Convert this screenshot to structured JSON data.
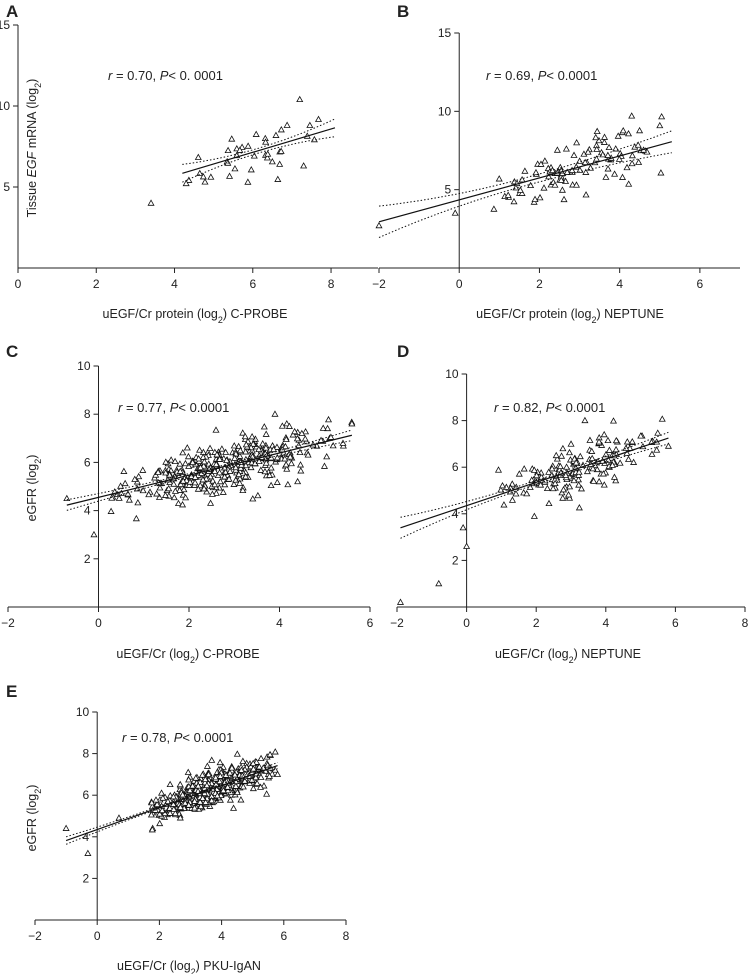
{
  "figure": "Five-panel scatter figure with linear regression fits and 95% confidence bands",
  "chart_data": [
    {
      "panel": "A",
      "type": "scatter",
      "title": "",
      "xlabel": "uEGF/Cr protein (log2) C-PROBE",
      "xlabel_parts": [
        "uEGF/Cr protein (log",
        "2",
        ") C-PROBE"
      ],
      "ylabel": "Tissue EGF mRNA (log2)",
      "ylabel_parts": [
        "Tissue ",
        "EGF",
        " mRNA (log",
        "2",
        ")"
      ],
      "annotation": {
        "r": "r",
        "text": " = 0.70,  ",
        "p": "P",
        "p_text": "< 0. 0001"
      },
      "xlim": [
        0,
        9.2
      ],
      "ylim": [
        0,
        15
      ],
      "xticks": [
        0,
        2,
        4,
        6,
        8
      ],
      "yticks": [
        5,
        10,
        15
      ],
      "fit": {
        "x": [
          4.2,
          8.1
        ],
        "intercept": 2.82,
        "slope": 0.72,
        "ci_width": [
          0.55,
          0.15,
          0.55
        ]
      },
      "points_n": 40,
      "points_x_range": [
        3.3,
        8.2
      ],
      "points_sd": 0.75,
      "seed": 11,
      "highlight_points": [
        [
          3.4,
          4.0
        ],
        [
          7.2,
          10.4
        ]
      ]
    },
    {
      "panel": "B",
      "type": "scatter",
      "title": "",
      "xlabel": "uEGF/Cr protein (log2) NEPTUNE",
      "xlabel_parts": [
        "uEGF/Cr protein (log",
        "2",
        ") NEPTUNE"
      ],
      "ylabel": "",
      "annotation": {
        "r": "r",
        "text": " = 0.69,  ",
        "p": "P",
        "p_text": "< 0.0001"
      },
      "xlim": [
        -2,
        7
      ],
      "ylim": [
        0,
        15
      ],
      "xticks": [
        -2,
        0,
        2,
        4,
        6
      ],
      "yticks": [
        5,
        10,
        15
      ],
      "fit": {
        "x": [
          -2,
          5.3
        ],
        "intercept": 4.35,
        "slope": 0.7,
        "ci_width": [
          1.0,
          0.25,
          0.7
        ]
      },
      "points_n": 110,
      "points_x_range": [
        -0.1,
        5.3
      ],
      "points_sd": 0.85,
      "seed": 23,
      "highlight_points": [
        [
          -2.0,
          2.7
        ],
        [
          4.3,
          9.7
        ],
        [
          -0.1,
          3.5
        ]
      ]
    },
    {
      "panel": "C",
      "type": "scatter",
      "title": "",
      "xlabel": "uEGF/Cr (log2) C-PROBE",
      "xlabel_parts": [
        "uEGF/Cr (log",
        "2",
        ") C-PROBE"
      ],
      "ylabel": "eGFR (log2)",
      "ylabel_parts": [
        "eGFR (log",
        "2",
        ")"
      ],
      "annotation": {
        "r": "r",
        "text": " = 0.77,  ",
        "p": "P",
        "p_text": "< 0.0001"
      },
      "xlim": [
        -2,
        6
      ],
      "ylim": [
        0,
        10
      ],
      "xticks": [
        -2,
        0,
        2,
        4,
        6
      ],
      "yticks": [
        2,
        4,
        6,
        8,
        10
      ],
      "fit": {
        "x": [
          -0.7,
          5.6
        ],
        "intercept": 4.55,
        "slope": 0.46,
        "ci_width": [
          0.22,
          0.06,
          0.22
        ]
      },
      "points_n": 380,
      "points_x_range": [
        -0.7,
        5.6
      ],
      "points_sd": 0.55,
      "seed": 37,
      "highlight_points": [
        [
          -0.1,
          3.0
        ],
        [
          3.9,
          8.0
        ],
        [
          5.6,
          7.6
        ],
        [
          -0.7,
          4.5
        ]
      ]
    },
    {
      "panel": "D",
      "type": "scatter",
      "title": "",
      "xlabel": "uEGF/Cr (log2) NEPTUNE",
      "xlabel_parts": [
        "uEGF/Cr (log",
        "2",
        ") NEPTUNE"
      ],
      "ylabel": "",
      "annotation": {
        "r": "r",
        "text": " = 0.82,  ",
        "p": "P",
        "p_text": "< 0.0001"
      },
      "xlim": [
        -2,
        8
      ],
      "ylim": [
        0,
        10
      ],
      "xticks": [
        -2,
        0,
        2,
        4,
        6,
        8
      ],
      "yticks": [
        2,
        4,
        6,
        8,
        10
      ],
      "fit": {
        "x": [
          -1.9,
          5.8
        ],
        "intercept": 4.35,
        "slope": 0.5,
        "ci_width": [
          0.45,
          0.08,
          0.25
        ]
      },
      "points_n": 170,
      "points_x_range": [
        -0.1,
        5.8
      ],
      "points_sd": 0.5,
      "seed": 53,
      "highlight_points": [
        [
          -1.9,
          0.2
        ],
        [
          3.4,
          8.0
        ],
        [
          -0.8,
          1.0
        ],
        [
          0.0,
          2.6
        ],
        [
          -0.1,
          3.4
        ],
        [
          5.8,
          6.9
        ]
      ]
    },
    {
      "panel": "E",
      "type": "scatter",
      "title": "",
      "xlabel": "uEGF/Cr (log2) PKU-IgAN",
      "xlabel_parts": [
        "uEGF/Cr (log",
        "2",
        ") PKU-IgAN"
      ],
      "ylabel": "eGFR (log2)",
      "ylabel_parts": [
        "eGFR (log",
        "2",
        ")"
      ],
      "annotation": {
        "r": "r",
        "text": " = 0.78, ",
        "p": "P",
        "p_text": "< 0.0001"
      },
      "xlim": [
        -2,
        8
      ],
      "ylim": [
        0,
        10
      ],
      "xticks": [
        -2,
        0,
        2,
        4,
        6,
        8
      ],
      "yticks": [
        2,
        4,
        6,
        8,
        10
      ],
      "fit": {
        "x": [
          -1.0,
          5.8
        ],
        "intercept": 4.35,
        "slope": 0.53,
        "ci_width": [
          0.18,
          0.05,
          0.15
        ]
      },
      "points_n": 520,
      "points_x_range": [
        1.0,
        5.8
      ],
      "points_sd": 0.42,
      "seed": 71,
      "highlight_points": [
        [
          -1.0,
          4.4
        ],
        [
          -0.3,
          3.2
        ],
        [
          0.7,
          4.9
        ],
        [
          5.8,
          7.0
        ]
      ]
    }
  ]
}
